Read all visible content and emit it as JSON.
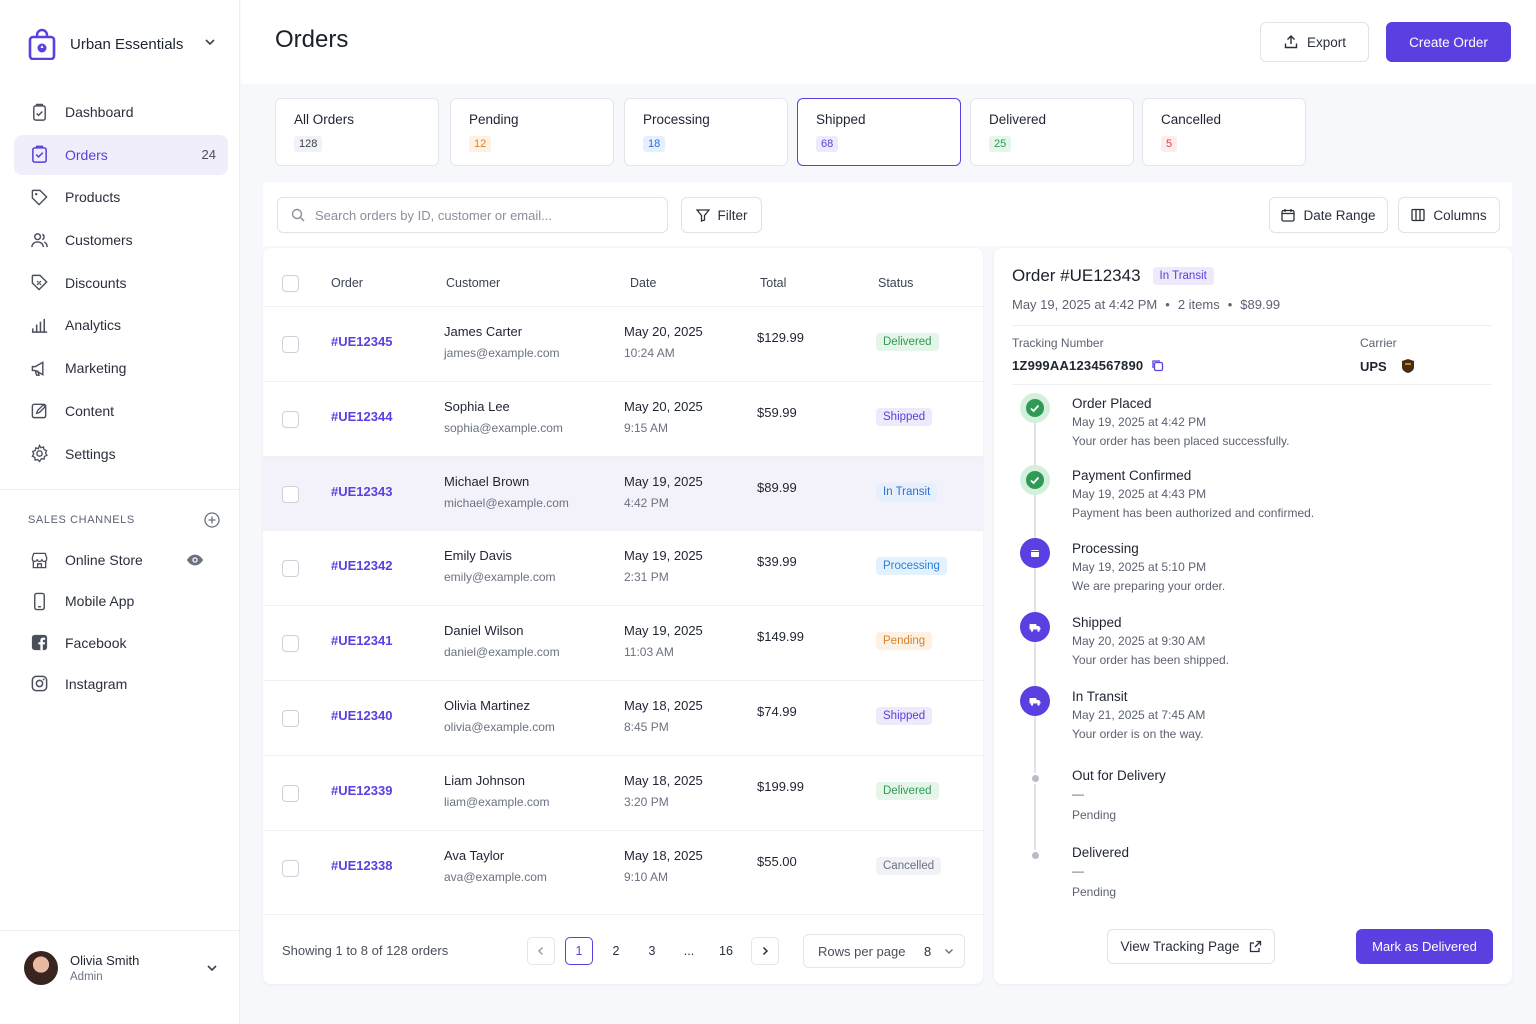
{
  "store": {
    "name": "Urban Essentials"
  },
  "nav": [
    {
      "label": "Dashboard",
      "icon": "dashboard-icon"
    },
    {
      "label": "Orders",
      "icon": "orders-icon",
      "badge": "24",
      "active": true
    },
    {
      "label": "Products",
      "icon": "tag-icon"
    },
    {
      "label": "Customers",
      "icon": "users-icon"
    },
    {
      "label": "Discounts",
      "icon": "discount-icon"
    },
    {
      "label": "Analytics",
      "icon": "bar-chart-icon"
    },
    {
      "label": "Marketing",
      "icon": "megaphone-icon"
    },
    {
      "label": "Content",
      "icon": "edit-icon"
    },
    {
      "label": "Settings",
      "icon": "gear-icon"
    }
  ],
  "sales_channels": {
    "heading": "SALES CHANNELS",
    "items": [
      {
        "label": "Online Store",
        "icon": "store-icon"
      },
      {
        "label": "Mobile App",
        "icon": "mobile-icon"
      },
      {
        "label": "Facebook",
        "icon": "facebook-icon"
      },
      {
        "label": "Instagram",
        "icon": "instagram-icon"
      }
    ]
  },
  "user": {
    "name": "Olivia Smith",
    "role": "Admin"
  },
  "header": {
    "title": "Orders",
    "export_label": "Export",
    "create_label": "Create Order"
  },
  "tabs": [
    {
      "label": "All Orders",
      "count": "128",
      "bg": "#f1f2f5",
      "fg": "#3c4252"
    },
    {
      "label": "Pending",
      "count": "12",
      "bg": "#fdf1e3",
      "fg": "#d9822b"
    },
    {
      "label": "Processing",
      "count": "18",
      "bg": "#e6f0fd",
      "fg": "#2f6fd6"
    },
    {
      "label": "Shipped",
      "count": "68",
      "bg": "#eeeafc",
      "fg": "#5b3fd6",
      "active": true
    },
    {
      "label": "Delivered",
      "count": "25",
      "bg": "#e5f5ea",
      "fg": "#2e9b55"
    },
    {
      "label": "Cancelled",
      "count": "5",
      "bg": "#fdeceb",
      "fg": "#d64545"
    }
  ],
  "toolbar": {
    "search_placeholder": "Search orders by ID, customer or email...",
    "filter_label": "Filter",
    "date_range_label": "Date Range",
    "columns_label": "Columns"
  },
  "table": {
    "columns": [
      "Order",
      "Customer",
      "Date",
      "Total",
      "Status"
    ],
    "rows": [
      {
        "id": "#UE12345",
        "name": "James Carter",
        "email": "james@example.com",
        "date": "May 20, 2025",
        "time": "10:24 AM",
        "total": "$129.99",
        "status": "Delivered"
      },
      {
        "id": "#UE12344",
        "name": "Sophia Lee",
        "email": "sophia@example.com",
        "date": "May 20, 2025",
        "time": "9:15 AM",
        "total": "$59.99",
        "status": "Shipped"
      },
      {
        "id": "#UE12343",
        "name": "Michael Brown",
        "email": "michael@example.com",
        "date": "May 19, 2025",
        "time": "4:42 PM",
        "total": "$89.99",
        "status": "In Transit",
        "selected": true
      },
      {
        "id": "#UE12342",
        "name": "Emily Davis",
        "email": "emily@example.com",
        "date": "May 19, 2025",
        "time": "2:31 PM",
        "total": "$39.99",
        "status": "Processing"
      },
      {
        "id": "#UE12341",
        "name": "Daniel Wilson",
        "email": "daniel@example.com",
        "date": "May 19, 2025",
        "time": "11:03 AM",
        "total": "$149.99",
        "status": "Pending"
      },
      {
        "id": "#UE12340",
        "name": "Olivia Martinez",
        "email": "olivia@example.com",
        "date": "May 18, 2025",
        "time": "8:45 PM",
        "total": "$74.99",
        "status": "Shipped"
      },
      {
        "id": "#UE12339",
        "name": "Liam Johnson",
        "email": "liam@example.com",
        "date": "May 18, 2025",
        "time": "3:20 PM",
        "total": "$199.99",
        "status": "Delivered"
      },
      {
        "id": "#UE12338",
        "name": "Ava Taylor",
        "email": "ava@example.com",
        "date": "May 18, 2025",
        "time": "9:10 AM",
        "total": "$55.00",
        "status": "Cancelled"
      }
    ]
  },
  "status_colors": {
    "Delivered": {
      "bg": "#e5f5ea",
      "fg": "#2e9b55"
    },
    "Shipped": {
      "bg": "#eeeafc",
      "fg": "#5b3fd6"
    },
    "In Transit": {
      "bg": "#e6f0fd",
      "fg": "#2f6fd6"
    },
    "Processing": {
      "bg": "#e3f1fd",
      "fg": "#2f7fd6"
    },
    "Pending": {
      "bg": "#fdf1e3",
      "fg": "#d9822b"
    },
    "Cancelled": {
      "bg": "#f1f2f5",
      "fg": "#6b7180"
    }
  },
  "pagination": {
    "summary": "Showing 1 to 8 of 128 orders",
    "pages": [
      "1",
      "2",
      "3",
      "...",
      "16"
    ],
    "current": "1",
    "rows_label": "Rows per page",
    "rows_value": "8"
  },
  "detail": {
    "title": "Order #UE12343",
    "badge": "In Transit",
    "meta_date": "May 19, 2025 at 4:42 PM",
    "meta_items": "2 items",
    "meta_total": "$89.99",
    "tracking_label": "Tracking Number",
    "tracking_number": "1Z999AA1234567890",
    "carrier_label": "Carrier",
    "carrier": "UPS",
    "timeline": [
      {
        "title": "Order Placed",
        "date": "May 19, 2025 at 4:42 PM",
        "desc": "Your order has been placed successfully.",
        "state": "done",
        "icon": "check-icon"
      },
      {
        "title": "Payment Confirmed",
        "date": "May 19, 2025 at 4:43 PM",
        "desc": "Payment has been authorized and confirmed.",
        "state": "done",
        "icon": "check-icon"
      },
      {
        "title": "Processing",
        "date": "May 19, 2025 at 5:10 PM",
        "desc": "We are preparing your order.",
        "state": "active",
        "icon": "box-icon"
      },
      {
        "title": "Shipped",
        "date": "May 20, 2025 at 9:30 AM",
        "desc": "Your order has been shipped.",
        "state": "active",
        "icon": "truck-icon"
      },
      {
        "title": "In Transit",
        "date": "May 21, 2025 at 7:45 AM",
        "desc": "Your order is on the way.",
        "state": "active",
        "icon": "truck-icon"
      },
      {
        "title": "Out for Delivery",
        "date": "—",
        "desc": "Pending",
        "state": "pending",
        "icon": "dot-icon"
      },
      {
        "title": "Delivered",
        "date": "—",
        "desc": "Pending",
        "state": "pending",
        "icon": "dot-icon"
      }
    ],
    "view_tracking_label": "View Tracking Page",
    "mark_delivered_label": "Mark as Delivered"
  }
}
